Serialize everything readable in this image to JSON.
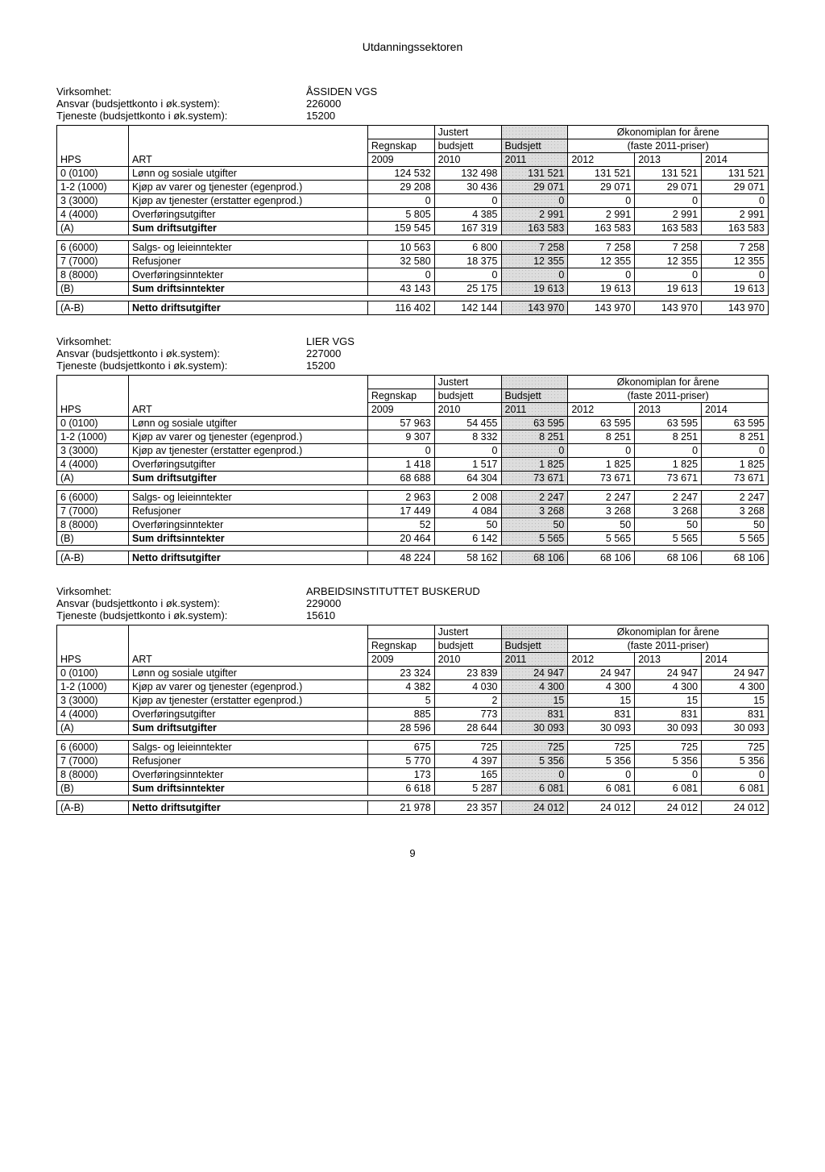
{
  "pageTitle": "Utdanningssektoren",
  "pageNumber": "9",
  "labels": {
    "virksomhet": "Virksomhet:",
    "ansvar": "Ansvar (budsjettkonto i øk.system):",
    "tjeneste": "Tjeneste (budsjettkonto i øk.system):",
    "hps": "HPS",
    "art": "ART",
    "regnskap": "Regnskap",
    "justert": "Justert",
    "budsjett": "budsjett",
    "budsjettCap": "Budsjett",
    "okonomiplan": "Økonomiplan for årene",
    "faste": "(faste 2011-priser)",
    "y2009": "2009",
    "y2010": "2010",
    "y2011": "2011",
    "y2012": "2012",
    "y2013": "2013",
    "y2014": "2014"
  },
  "rowLabels": {
    "r0": {
      "hps": "0 (0100)",
      "art": "Lønn og sosiale utgifter"
    },
    "r1": {
      "hps": "1-2 (1000)",
      "art": "Kjøp av varer og tjenester (egenprod.)"
    },
    "r2": {
      "hps": "3 (3000)",
      "art": "Kjøp av tjenester (erstatter egenprod.)"
    },
    "r3": {
      "hps": "4 (4000)",
      "art": "Overføringsutgifter"
    },
    "rA": {
      "hps": "(A)",
      "art": "Sum driftsutgifter"
    },
    "r6": {
      "hps": "6 (6000)",
      "art": "Salgs- og leieinntekter"
    },
    "r7": {
      "hps": "7 (7000)",
      "art": "Refusjoner"
    },
    "r8": {
      "hps": "8 (8000)",
      "art": "Overføringsinntekter"
    },
    "rB": {
      "hps": "(B)",
      "art": "Sum driftsinntekter"
    },
    "rAB": {
      "hps": "(A-B)",
      "art": "Netto driftsutgifter"
    }
  },
  "sections": [
    {
      "virksomhet": "ÅSSIDEN VGS",
      "ansvar": "226000",
      "tjeneste": "15200",
      "data": {
        "r0": [
          "124 532",
          "132 498",
          "131 521",
          "131 521",
          "131 521",
          "131 521"
        ],
        "r1": [
          "29 208",
          "30 436",
          "29 071",
          "29 071",
          "29 071",
          "29 071"
        ],
        "r2": [
          "0",
          "0",
          "0",
          "0",
          "0",
          "0"
        ],
        "r3": [
          "5 805",
          "4 385",
          "2 991",
          "2 991",
          "2 991",
          "2 991"
        ],
        "rA": [
          "159 545",
          "167 319",
          "163 583",
          "163 583",
          "163 583",
          "163 583"
        ],
        "r6": [
          "10 563",
          "6 800",
          "7 258",
          "7 258",
          "7 258",
          "7 258"
        ],
        "r7": [
          "32 580",
          "18 375",
          "12 355",
          "12 355",
          "12 355",
          "12 355"
        ],
        "r8": [
          "0",
          "0",
          "0",
          "0",
          "0",
          "0"
        ],
        "rB": [
          "43 143",
          "25 175",
          "19 613",
          "19 613",
          "19 613",
          "19 613"
        ],
        "rAB": [
          "116 402",
          "142 144",
          "143 970",
          "143 970",
          "143 970",
          "143 970"
        ]
      }
    },
    {
      "virksomhet": "LIER VGS",
      "ansvar": "227000",
      "tjeneste": "15200",
      "data": {
        "r0": [
          "57 963",
          "54 455",
          "63 595",
          "63 595",
          "63 595",
          "63 595"
        ],
        "r1": [
          "9 307",
          "8 332",
          "8 251",
          "8 251",
          "8 251",
          "8 251"
        ],
        "r2": [
          "0",
          "0",
          "0",
          "0",
          "0",
          "0"
        ],
        "r3": [
          "1 418",
          "1 517",
          "1 825",
          "1 825",
          "1 825",
          "1 825"
        ],
        "rA": [
          "68 688",
          "64 304",
          "73 671",
          "73 671",
          "73 671",
          "73 671"
        ],
        "r6": [
          "2 963",
          "2 008",
          "2 247",
          "2 247",
          "2 247",
          "2 247"
        ],
        "r7": [
          "17 449",
          "4 084",
          "3 268",
          "3 268",
          "3 268",
          "3 268"
        ],
        "r8": [
          "52",
          "50",
          "50",
          "50",
          "50",
          "50"
        ],
        "rB": [
          "20 464",
          "6 142",
          "5 565",
          "5 565",
          "5 565",
          "5 565"
        ],
        "rAB": [
          "48 224",
          "58 162",
          "68 106",
          "68 106",
          "68 106",
          "68 106"
        ]
      }
    },
    {
      "virksomhet": "ARBEIDSINSTITUTTET BUSKERUD",
      "ansvar": "229000",
      "tjeneste": "15610",
      "data": {
        "r0": [
          "23 324",
          "23 839",
          "24 947",
          "24 947",
          "24 947",
          "24 947"
        ],
        "r1": [
          "4 382",
          "4 030",
          "4 300",
          "4 300",
          "4 300",
          "4 300"
        ],
        "r2": [
          "5",
          "2",
          "15",
          "15",
          "15",
          "15"
        ],
        "r3": [
          "885",
          "773",
          "831",
          "831",
          "831",
          "831"
        ],
        "rA": [
          "28 596",
          "28 644",
          "30 093",
          "30 093",
          "30 093",
          "30 093"
        ],
        "r6": [
          "675",
          "725",
          "725",
          "725",
          "725",
          "725"
        ],
        "r7": [
          "5 770",
          "4 397",
          "5 356",
          "5 356",
          "5 356",
          "5 356"
        ],
        "r8": [
          "173",
          "165",
          "0",
          "0",
          "0",
          "0"
        ],
        "rB": [
          "6 618",
          "5 287",
          "6 081",
          "6 081",
          "6 081",
          "6 081"
        ],
        "rAB": [
          "21 978",
          "23 357",
          "24 012",
          "24 012",
          "24 012",
          "24 012"
        ]
      }
    }
  ]
}
